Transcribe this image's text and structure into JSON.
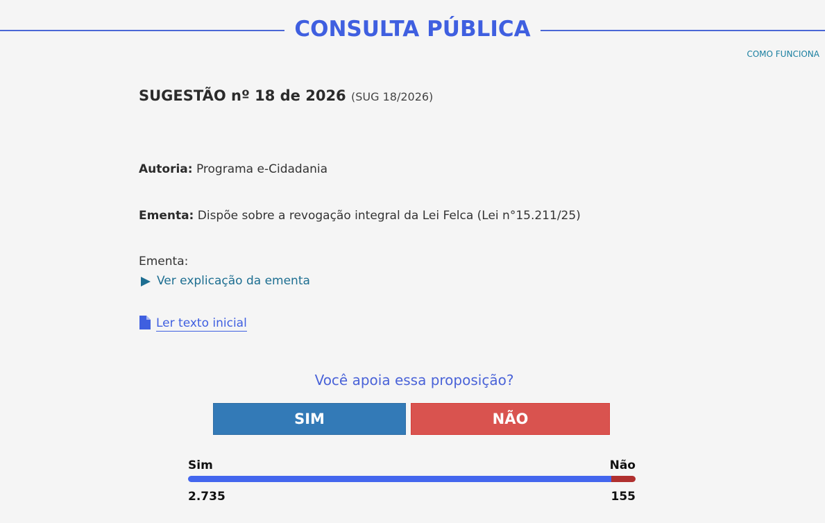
{
  "header": {
    "title": "CONSULTA PÚBLICA",
    "help_link": "COMO FUNCIONA"
  },
  "proposal": {
    "title": "SUGESTÃO nº 18 de 2026",
    "code": "(SUG 18/2026)",
    "author_label": "Autoria:",
    "author": "Programa e-Cidadania",
    "summary_label": "Ementa:",
    "summary": "Dispõe sobre a revogação integral da Lei Felca (Lei n°15.211/25)",
    "explanation_label": "Ementa:",
    "explanation_link": "Ver explicação da ementa",
    "text_link": "Ler texto inicial"
  },
  "poll": {
    "question": "Você apoia essa proposição?",
    "buttons": [
      "SIM",
      "NÃO"
    ],
    "results": [
      {
        "label": "Sim",
        "count": 2735,
        "count_label": "2.735",
        "color": "#4366ee"
      },
      {
        "label": "Não",
        "count": 155,
        "count_label": "155",
        "color": "#b0302f"
      }
    ]
  }
}
